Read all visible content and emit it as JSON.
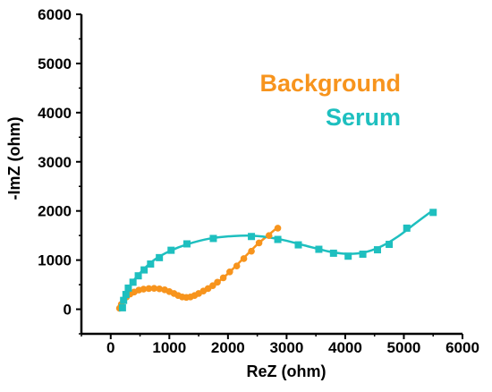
{
  "chart_data": {
    "type": "scatter",
    "xlabel": "ReZ (ohm)",
    "ylabel": "-ImZ (ohm)",
    "xlim": [
      -500,
      6000
    ],
    "ylim": [
      -500,
      6000
    ],
    "xticks": [
      0,
      1000,
      2000,
      3000,
      4000,
      5000,
      6000
    ],
    "yticks": [
      0,
      1000,
      2000,
      3000,
      4000,
      5000,
      6000
    ],
    "grid": false,
    "legend_position": "upper-right",
    "series": [
      {
        "name": "Background",
        "color": "#F7941D",
        "marker": "circle",
        "points": [
          [
            150,
            20
          ],
          [
            180,
            100
          ],
          [
            220,
            180
          ],
          [
            270,
            250
          ],
          [
            330,
            310
          ],
          [
            400,
            350
          ],
          [
            480,
            390
          ],
          [
            560,
            410
          ],
          [
            650,
            420
          ],
          [
            740,
            425
          ],
          [
            830,
            415
          ],
          [
            920,
            395
          ],
          [
            1000,
            360
          ],
          [
            1080,
            320
          ],
          [
            1150,
            280
          ],
          [
            1220,
            250
          ],
          [
            1290,
            240
          ],
          [
            1360,
            250
          ],
          [
            1430,
            280
          ],
          [
            1500,
            320
          ],
          [
            1580,
            370
          ],
          [
            1660,
            420
          ],
          [
            1740,
            480
          ],
          [
            1820,
            550
          ],
          [
            1920,
            640
          ],
          [
            2030,
            760
          ],
          [
            2150,
            880
          ],
          [
            2270,
            1030
          ],
          [
            2400,
            1180
          ],
          [
            2530,
            1350
          ],
          [
            2700,
            1500
          ],
          [
            2850,
            1650
          ]
        ],
        "fit": [
          [
            150,
            10
          ],
          [
            200,
            150
          ],
          [
            280,
            260
          ],
          [
            400,
            350
          ],
          [
            550,
            410
          ],
          [
            700,
            425
          ],
          [
            850,
            405
          ],
          [
            1000,
            350
          ],
          [
            1150,
            270
          ],
          [
            1280,
            235
          ],
          [
            1400,
            255
          ],
          [
            1550,
            340
          ],
          [
            1700,
            450
          ],
          [
            1900,
            620
          ],
          [
            2100,
            840
          ],
          [
            2300,
            1080
          ],
          [
            2500,
            1320
          ],
          [
            2700,
            1520
          ],
          [
            2880,
            1700
          ]
        ]
      },
      {
        "name": "Serum",
        "color": "#1EBFBF",
        "marker": "square",
        "points": [
          [
            200,
            30
          ],
          [
            220,
            180
          ],
          [
            260,
            300
          ],
          [
            300,
            430
          ],
          [
            380,
            550
          ],
          [
            470,
            680
          ],
          [
            570,
            800
          ],
          [
            680,
            920
          ],
          [
            830,
            1050
          ],
          [
            1030,
            1200
          ],
          [
            1300,
            1330
          ],
          [
            1750,
            1440
          ],
          [
            2400,
            1480
          ],
          [
            2850,
            1420
          ],
          [
            3200,
            1310
          ],
          [
            3550,
            1220
          ],
          [
            3800,
            1140
          ],
          [
            4050,
            1080
          ],
          [
            4300,
            1120
          ],
          [
            4550,
            1210
          ],
          [
            4750,
            1320
          ],
          [
            5050,
            1650
          ],
          [
            5500,
            1970
          ]
        ],
        "fit": [
          [
            200,
            0
          ],
          [
            230,
            200
          ],
          [
            300,
            420
          ],
          [
            400,
            600
          ],
          [
            550,
            800
          ],
          [
            750,
            1010
          ],
          [
            1000,
            1180
          ],
          [
            1300,
            1320
          ],
          [
            1700,
            1440
          ],
          [
            2100,
            1490
          ],
          [
            2500,
            1490
          ],
          [
            2900,
            1420
          ],
          [
            3300,
            1300
          ],
          [
            3700,
            1180
          ],
          [
            4000,
            1130
          ],
          [
            4300,
            1150
          ],
          [
            4600,
            1270
          ],
          [
            4900,
            1480
          ],
          [
            5200,
            1750
          ],
          [
            5480,
            2000
          ]
        ]
      }
    ]
  }
}
